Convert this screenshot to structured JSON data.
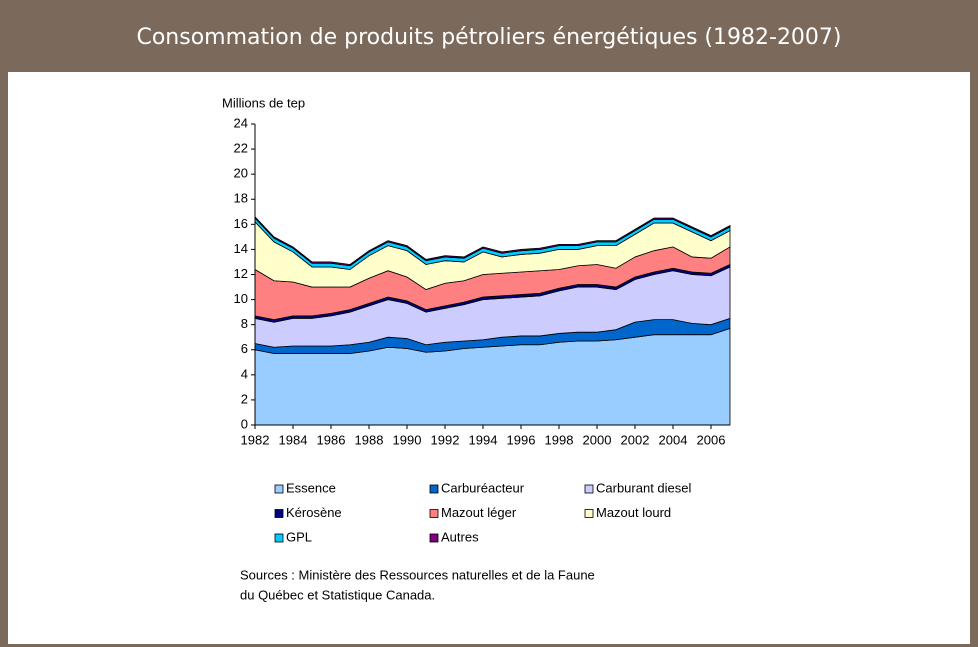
{
  "header": {
    "title": "Consommation de produits pétroliers énergétiques (1982-2007)"
  },
  "chart_data": {
    "type": "stacked_area",
    "y_label": "Millions de tep",
    "x": [
      1982,
      1983,
      1984,
      1985,
      1986,
      1987,
      1988,
      1989,
      1990,
      1991,
      1992,
      1993,
      1994,
      1995,
      1996,
      1997,
      1998,
      1999,
      2000,
      2001,
      2002,
      2003,
      2004,
      2005,
      2006,
      2007
    ],
    "xlim": [
      1982,
      2007
    ],
    "xticks": [
      1982,
      1984,
      1986,
      1988,
      1990,
      1992,
      1994,
      1996,
      1998,
      2000,
      2002,
      2004,
      2006
    ],
    "ylim": [
      0,
      24
    ],
    "yticks": [
      0,
      2,
      4,
      6,
      8,
      10,
      12,
      14,
      16,
      18,
      20,
      22,
      24
    ],
    "series": [
      {
        "name": "Essence",
        "color": "#99ccff",
        "values": [
          6.0,
          5.7,
          5.7,
          5.7,
          5.7,
          5.7,
          5.9,
          6.2,
          6.1,
          5.8,
          5.9,
          6.1,
          6.2,
          6.3,
          6.4,
          6.4,
          6.6,
          6.7,
          6.7,
          6.8,
          7.0,
          7.2,
          7.2,
          7.2,
          7.2,
          7.7
        ]
      },
      {
        "name": "Carburéacteur",
        "color": "#0066cc",
        "values": [
          0.5,
          0.5,
          0.6,
          0.6,
          0.6,
          0.7,
          0.7,
          0.8,
          0.8,
          0.6,
          0.7,
          0.6,
          0.6,
          0.7,
          0.7,
          0.7,
          0.7,
          0.7,
          0.7,
          0.8,
          1.2,
          1.2,
          1.2,
          0.9,
          0.8,
          0.8
        ]
      },
      {
        "name": "Carburant diesel",
        "color": "#ccccff",
        "values": [
          2.0,
          2.0,
          2.2,
          2.2,
          2.4,
          2.6,
          2.9,
          3.0,
          2.8,
          2.6,
          2.7,
          2.9,
          3.2,
          3.1,
          3.1,
          3.2,
          3.4,
          3.6,
          3.6,
          3.2,
          3.4,
          3.6,
          3.9,
          3.9,
          3.9,
          4.1
        ]
      },
      {
        "name": "Kérosène",
        "color": "#000080",
        "values": [
          0.2,
          0.2,
          0.2,
          0.2,
          0.2,
          0.2,
          0.2,
          0.2,
          0.2,
          0.2,
          0.2,
          0.2,
          0.2,
          0.2,
          0.2,
          0.2,
          0.2,
          0.2,
          0.2,
          0.2,
          0.2,
          0.2,
          0.2,
          0.2,
          0.2,
          0.2
        ]
      },
      {
        "name": "Mazout léger",
        "color": "#ff8080",
        "values": [
          3.7,
          3.1,
          2.7,
          2.3,
          2.1,
          1.8,
          2.0,
          2.1,
          1.9,
          1.6,
          1.8,
          1.7,
          1.8,
          1.8,
          1.8,
          1.8,
          1.5,
          1.5,
          1.6,
          1.5,
          1.6,
          1.7,
          1.7,
          1.2,
          1.2,
          1.4
        ]
      },
      {
        "name": "Mazout lourd",
        "color": "#ffffcc",
        "values": [
          3.8,
          3.1,
          2.4,
          1.6,
          1.6,
          1.4,
          1.8,
          2.0,
          2.1,
          2.0,
          1.8,
          1.5,
          1.8,
          1.3,
          1.4,
          1.4,
          1.6,
          1.3,
          1.5,
          1.8,
          1.8,
          2.2,
          1.9,
          2.0,
          1.4,
          1.3
        ]
      },
      {
        "name": "GPL",
        "color": "#00ccff",
        "values": [
          0.3,
          0.3,
          0.3,
          0.3,
          0.3,
          0.3,
          0.3,
          0.3,
          0.3,
          0.3,
          0.3,
          0.3,
          0.3,
          0.3,
          0.3,
          0.3,
          0.3,
          0.3,
          0.3,
          0.3,
          0.3,
          0.3,
          0.3,
          0.3,
          0.3,
          0.3
        ]
      },
      {
        "name": "Autres",
        "color": "#800080",
        "values": [
          0.1,
          0.1,
          0.1,
          0.1,
          0.1,
          0.1,
          0.1,
          0.1,
          0.1,
          0.1,
          0.1,
          0.1,
          0.1,
          0.1,
          0.1,
          0.1,
          0.1,
          0.1,
          0.1,
          0.1,
          0.1,
          0.1,
          0.1,
          0.1,
          0.1,
          0.1
        ]
      }
    ],
    "sources": [
      "Sources : Ministère des Ressources naturelles et de la Faune",
      "du Québec et Statistique Canada."
    ]
  }
}
